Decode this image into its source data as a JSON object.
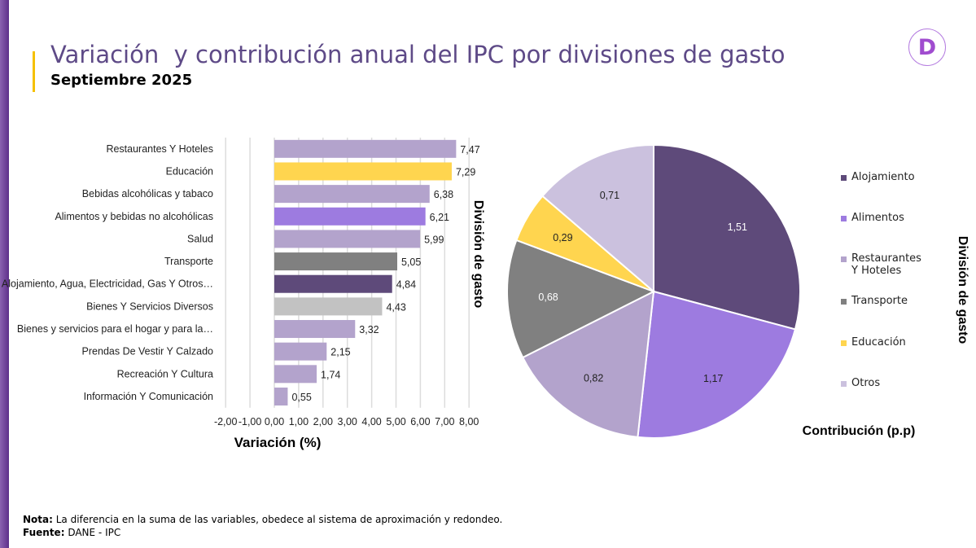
{
  "header": {
    "title": "Variación  y contribución anual del IPC por divisiones de gasto",
    "subtitle": "Septiembre 2025",
    "logo_letter": "D"
  },
  "chart_data": [
    {
      "type": "bar",
      "orientation": "horizontal",
      "xlabel": "Variación (%)",
      "ylabel": "División de gasto",
      "xlim": [
        -2,
        8
      ],
      "xticks": [
        "-2,00",
        "-1,00",
        "0,00",
        "1,00",
        "2,00",
        "3,00",
        "4,00",
        "5,00",
        "6,00",
        "7,00",
        "8,00"
      ],
      "categories": [
        "Restaurantes Y Hoteles",
        "Educación",
        "Bebidas alcohólicas y tabaco",
        "Alimentos y bebidas no alcohólicas",
        "Salud",
        "Transporte",
        "Alojamiento, Agua, Electricidad, Gas Y Otros…",
        "Bienes Y Servicios Diversos",
        "Bienes y servicios para el hogar y para la…",
        "Prendas De Vestir Y Calzado",
        "Recreación Y Cultura",
        "Información Y Comunicación"
      ],
      "values": [
        7.47,
        7.29,
        6.38,
        6.21,
        5.99,
        5.05,
        4.84,
        4.43,
        3.32,
        2.15,
        1.74,
        0.55
      ],
      "labels": [
        "7,47",
        "7,29",
        "6,38",
        "6,21",
        "5,99",
        "5,05",
        "4,84",
        "4,43",
        "3,32",
        "2,15",
        "1,74",
        "0,55"
      ],
      "colors": [
        "#b3a3cc",
        "#ffd54f",
        "#b3a3cc",
        "#9d7be0",
        "#b3a3cc",
        "#808080",
        "#5e4a7a",
        "#c2c2c2",
        "#b3a3cc",
        "#b3a3cc",
        "#b3a3cc",
        "#b3a3cc"
      ]
    },
    {
      "type": "pie",
      "title": "Contribución (p.p)",
      "legend_title": "División de gasto",
      "legend_position": "right",
      "categories": [
        "Alojamiento",
        "Alimentos",
        "Restaurantes Y Hoteles",
        "Transporte",
        "Educación",
        "Otros"
      ],
      "values": [
        1.51,
        1.17,
        0.82,
        0.68,
        0.29,
        0.71
      ],
      "labels": [
        "1,51",
        "1,17",
        "0,82",
        "0,68",
        "0,29",
        "0,71"
      ],
      "colors": [
        "#5e4a7a",
        "#9d7be0",
        "#b3a3cc",
        "#808080",
        "#ffd54f",
        "#cbc1de"
      ],
      "label_colors": [
        "#ffffff",
        "#222222",
        "#222222",
        "#ffffff",
        "#222222",
        "#222222"
      ]
    }
  ],
  "footer": {
    "note_label": "Nota:",
    "note_text": " La diferencia en la suma de las variables, obedece al sistema de aproximación y redondeo.",
    "source_label": "Fuente:",
    "source_text": " DANE - IPC"
  }
}
